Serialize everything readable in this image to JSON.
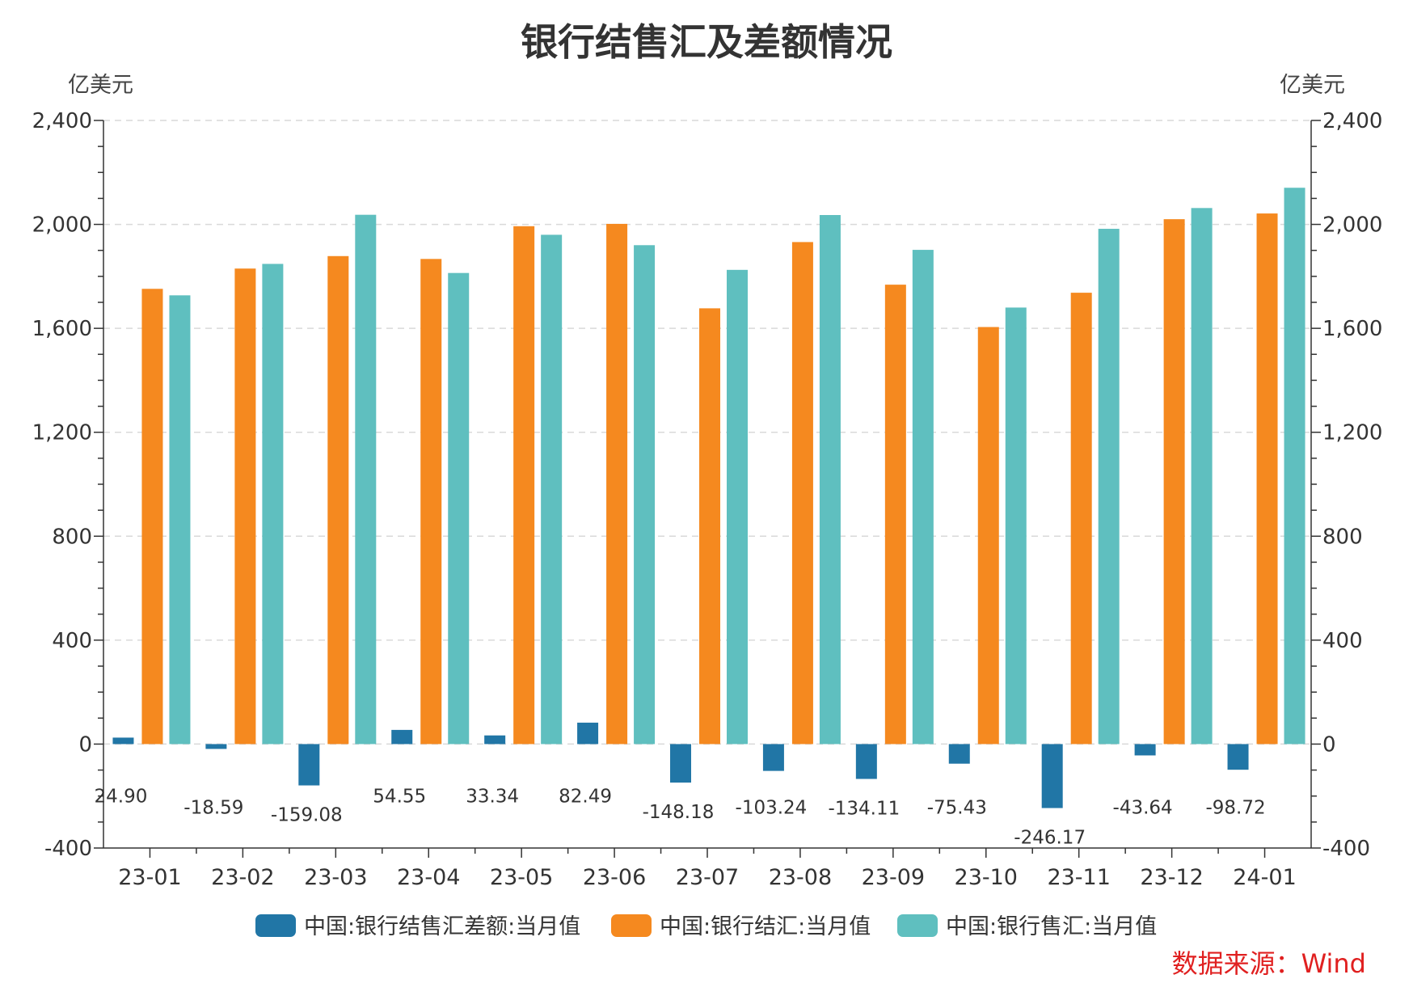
{
  "chart_data": {
    "type": "bar",
    "title": "银行结售汇及差额情况",
    "y_unit_left": "亿美元",
    "y_unit_right": "亿美元",
    "ylim": [
      -400,
      2400
    ],
    "yticks": [
      -400,
      0,
      400,
      800,
      1200,
      1600,
      2000,
      2400
    ],
    "ytick_labels": [
      "-400",
      "0",
      "400",
      "800",
      "1,200",
      "1,600",
      "2,000",
      "2,400"
    ],
    "grid": true,
    "legend_position": "bottom",
    "categories": [
      "23-01",
      "23-02",
      "23-03",
      "23-04",
      "23-05",
      "23-06",
      "23-07",
      "23-08",
      "23-09",
      "23-10",
      "23-11",
      "23-12",
      "24-01"
    ],
    "series": [
      {
        "name": "中国:银行结售汇差额:当月值",
        "color": "#2176a6",
        "values": [
          24.9,
          -18.59,
          -159.08,
          54.55,
          33.34,
          82.49,
          -148.18,
          -103.24,
          -134.11,
          -75.43,
          -246.17,
          -43.64,
          -98.72
        ],
        "labels": [
          "24.90",
          "-18.59",
          "-159.08",
          "54.55",
          "33.34",
          "82.49",
          "-148.18",
          "-103.24",
          "-134.11",
          "-75.43",
          "-246.17",
          "-43.64",
          "-98.72"
        ]
      },
      {
        "name": "中国:银行结汇:当月值",
        "color": "#f5891f",
        "values": [
          1752,
          1830,
          1878,
          1867,
          1993,
          2002,
          1677,
          1932,
          1768,
          1605,
          1737,
          2020,
          2042
        ]
      },
      {
        "name": "中国:银行售汇:当月值",
        "color": "#5fbfbf",
        "values": [
          1727,
          1848,
          2037,
          1813,
          1960,
          1920,
          1825,
          2036,
          1902,
          1680,
          1983,
          2063,
          2141
        ]
      }
    ],
    "source": "数据来源：Wind"
  }
}
